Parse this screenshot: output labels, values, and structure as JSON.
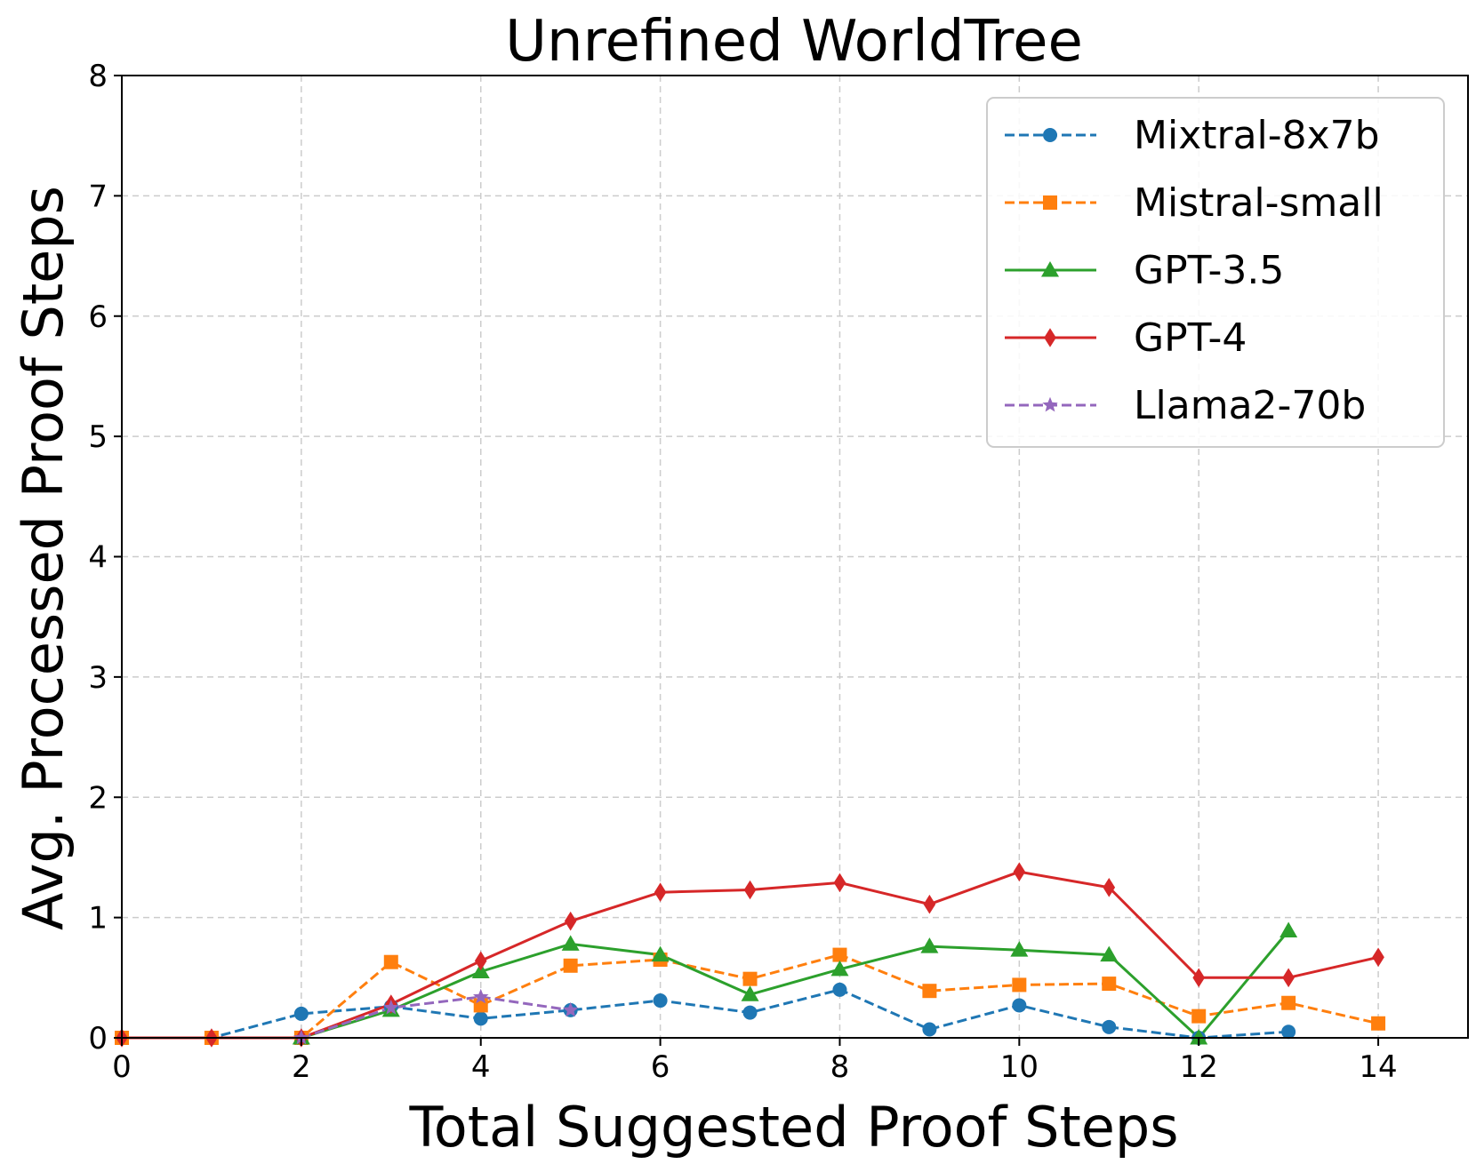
{
  "chart_data": {
    "type": "line",
    "title": "Unrefined WorldTree",
    "xlabel": "Total Suggested Proof Steps",
    "ylabel": "Avg. Processed Proof Steps",
    "xlim": [
      0,
      15
    ],
    "ylim": [
      0,
      8
    ],
    "xticks": [
      0,
      2,
      4,
      6,
      8,
      10,
      12,
      14
    ],
    "yticks": [
      0,
      1,
      2,
      3,
      4,
      5,
      6,
      7,
      8
    ],
    "grid": true,
    "legend_position": "top-right",
    "series": [
      {
        "name": "Mixtral-8x7b",
        "color": "#1f77b4",
        "line_style": "dashed",
        "marker": "circle",
        "x": [
          0,
          1,
          2,
          3,
          4,
          5,
          6,
          7,
          8,
          9,
          10,
          11,
          12,
          13
        ],
        "y": [
          0,
          0,
          0.2,
          0.26,
          0.16,
          0.23,
          0.31,
          0.21,
          0.4,
          0.07,
          0.27,
          0.09,
          0,
          0.05
        ]
      },
      {
        "name": "Mistral-small",
        "color": "#ff7f0e",
        "line_style": "dashed",
        "marker": "square",
        "x": [
          0,
          1,
          2,
          3,
          4,
          5,
          6,
          7,
          8,
          9,
          10,
          11,
          12,
          13,
          14
        ],
        "y": [
          0,
          0,
          0,
          0.63,
          0.27,
          0.6,
          0.65,
          0.49,
          0.69,
          0.39,
          0.44,
          0.45,
          0.18,
          0.29,
          0.12
        ]
      },
      {
        "name": "GPT-3.5",
        "color": "#2ca02c",
        "line_style": "solid",
        "marker": "triangle",
        "x": [
          2,
          3,
          4,
          5,
          6,
          7,
          8,
          9,
          10,
          11,
          12,
          13
        ],
        "y": [
          0,
          0.23,
          0.55,
          0.78,
          0.69,
          0.36,
          0.57,
          0.76,
          0.73,
          0.69,
          0,
          0.89
        ]
      },
      {
        "name": "GPT-4",
        "color": "#d62728",
        "line_style": "solid",
        "marker": "diamond",
        "x": [
          0,
          1,
          2,
          3,
          4,
          5,
          6,
          7,
          8,
          9,
          10,
          11,
          12,
          13,
          14
        ],
        "y": [
          0,
          0,
          0,
          0.28,
          0.64,
          0.97,
          1.21,
          1.23,
          1.29,
          1.11,
          1.38,
          1.25,
          0.5,
          0.5,
          0.67
        ]
      },
      {
        "name": "Llama2-70b",
        "color": "#9467bd",
        "line_style": "dashed",
        "marker": "star",
        "x": [
          2,
          3,
          4,
          5
        ],
        "y": [
          0,
          0.25,
          0.34,
          0.23
        ]
      }
    ]
  }
}
